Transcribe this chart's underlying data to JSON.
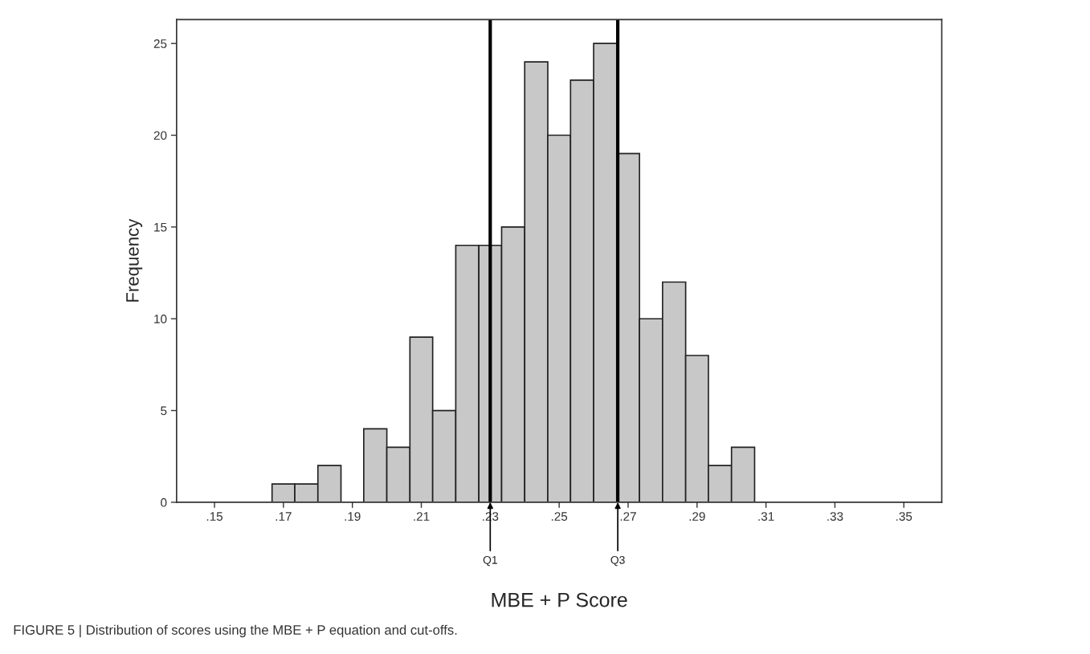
{
  "chart_data": {
    "type": "histogram",
    "xlabel": "MBE + P Score",
    "ylabel": "Frequency",
    "bins": [
      0.1667,
      0.1733,
      0.18,
      0.1867,
      0.1933,
      0.2,
      0.2067,
      0.2133,
      0.22,
      0.2267,
      0.2333,
      0.24,
      0.2467,
      0.2533,
      0.26,
      0.2667,
      0.2733,
      0.28,
      0.2867,
      0.2933,
      0.3,
      0.3067
    ],
    "values": [
      1,
      1,
      2,
      0,
      4,
      3,
      9,
      5,
      14,
      14,
      15,
      24,
      20,
      23,
      25,
      19,
      10,
      12,
      8,
      2,
      3
    ],
    "color": "#c8c8c8",
    "xlim": [
      0.139,
      0.361
    ],
    "xticks": [
      {
        "value": 0.15,
        "label": ".15"
      },
      {
        "value": 0.17,
        "label": ".17"
      },
      {
        "value": 0.19,
        "label": ".19"
      },
      {
        "value": 0.21,
        "label": ".21"
      },
      {
        "value": 0.23,
        "label": ".23"
      },
      {
        "value": 0.25,
        "label": ".25"
      },
      {
        "value": 0.27,
        "label": ".27"
      },
      {
        "value": 0.29,
        "label": ".29"
      },
      {
        "value": 0.31,
        "label": ".31"
      },
      {
        "value": 0.33,
        "label": ".33"
      },
      {
        "value": 0.35,
        "label": ".35"
      }
    ],
    "ylim": [
      0,
      26.3
    ],
    "yticks": [
      0,
      5,
      10,
      15,
      20,
      25
    ],
    "ref_lines": [
      {
        "axis": "x",
        "value": 0.23,
        "color": "#000000"
      },
      {
        "axis": "x",
        "value": 0.267,
        "color": "#000000"
      }
    ],
    "annotations": [
      {
        "text": "Q1",
        "x": 0.23,
        "y": 0
      },
      {
        "text": "Q3",
        "x": 0.267,
        "y": 0
      },
      "FIGURE 5 | Distribution of scores using the MBE + P equation and cut-offs."
    ],
    "grid": false
  }
}
